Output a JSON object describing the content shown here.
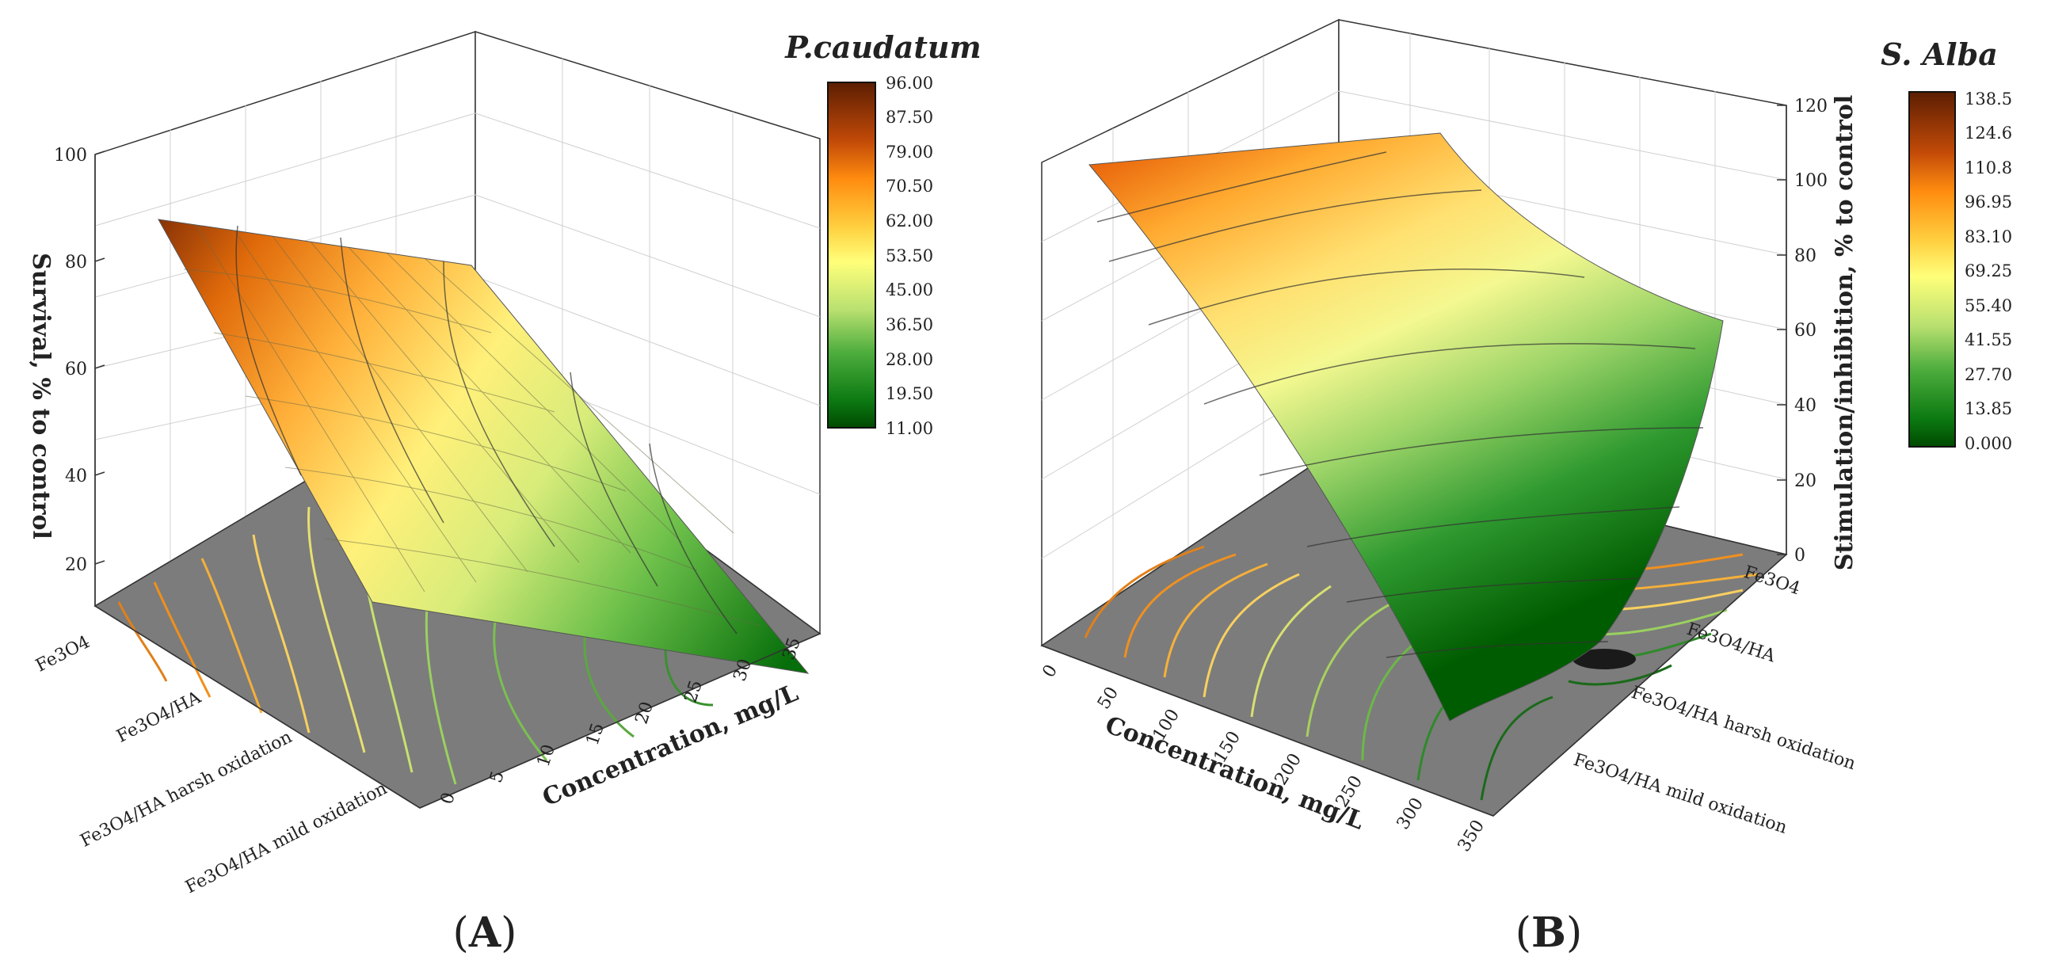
{
  "chart_data": [
    {
      "type": "surface3d",
      "panel_label": "(A)",
      "panel_letter": "A",
      "legend_title": "P.caudatum",
      "z_label": "Survival, % to control",
      "x_label": "Concentration, mg/L",
      "z_ticks": [
        "20",
        "40",
        "60",
        "80",
        "100"
      ],
      "x_ticks": [
        "0",
        "5",
        "10",
        "15",
        "20",
        "25",
        "30",
        "35"
      ],
      "categories": [
        "Fe3O4",
        "Fe3O4/HA",
        "Fe3O4/HA harsh oxidation",
        "Fe3O4/HA mild oxidation"
      ],
      "zlim": [
        12,
        100
      ],
      "xlim": [
        0,
        35
      ],
      "colorbar": [
        "96.00",
        "87.50",
        "79.00",
        "70.50",
        "62.00",
        "53.50",
        "45.00",
        "36.50",
        "28.00",
        "19.50",
        "11.00"
      ],
      "colors": {
        "high": "#7a2e05",
        "mid_high": "#ff8c0f",
        "mid": "#ffff7a",
        "mid_low": "#49a83a",
        "low": "#006400",
        "floor": "#7c7c7c"
      }
    },
    {
      "type": "surface3d",
      "panel_label": "(B)",
      "panel_letter": "B",
      "legend_title": "S. Alba",
      "z_label": "Stimulation/inhibition, % to control",
      "x_label": "Concentration, mg/L",
      "z_ticks": [
        "0",
        "20",
        "40",
        "60",
        "80",
        "100",
        "120"
      ],
      "x_ticks": [
        "0",
        "50",
        "100",
        "150",
        "200",
        "250",
        "300",
        "350"
      ],
      "categories": [
        "Fe3O4",
        "Fe3O4/HA",
        "Fe3O4/HA harsh oxidation",
        "Fe3O4/HA mild oxidation"
      ],
      "zlim": [
        0,
        120
      ],
      "xlim": [
        0,
        350
      ],
      "colorbar": [
        "138.5",
        "124.6",
        "110.8",
        "96.95",
        "83.10",
        "69.25",
        "55.40",
        "41.55",
        "27.70",
        "13.85",
        "0.000"
      ],
      "colors": {
        "high": "#5c1e02",
        "mid_high": "#ff8c0f",
        "mid": "#ffff7a",
        "mid_low": "#49a83a",
        "low": "#006400",
        "floor": "#7c7c7c"
      }
    }
  ]
}
